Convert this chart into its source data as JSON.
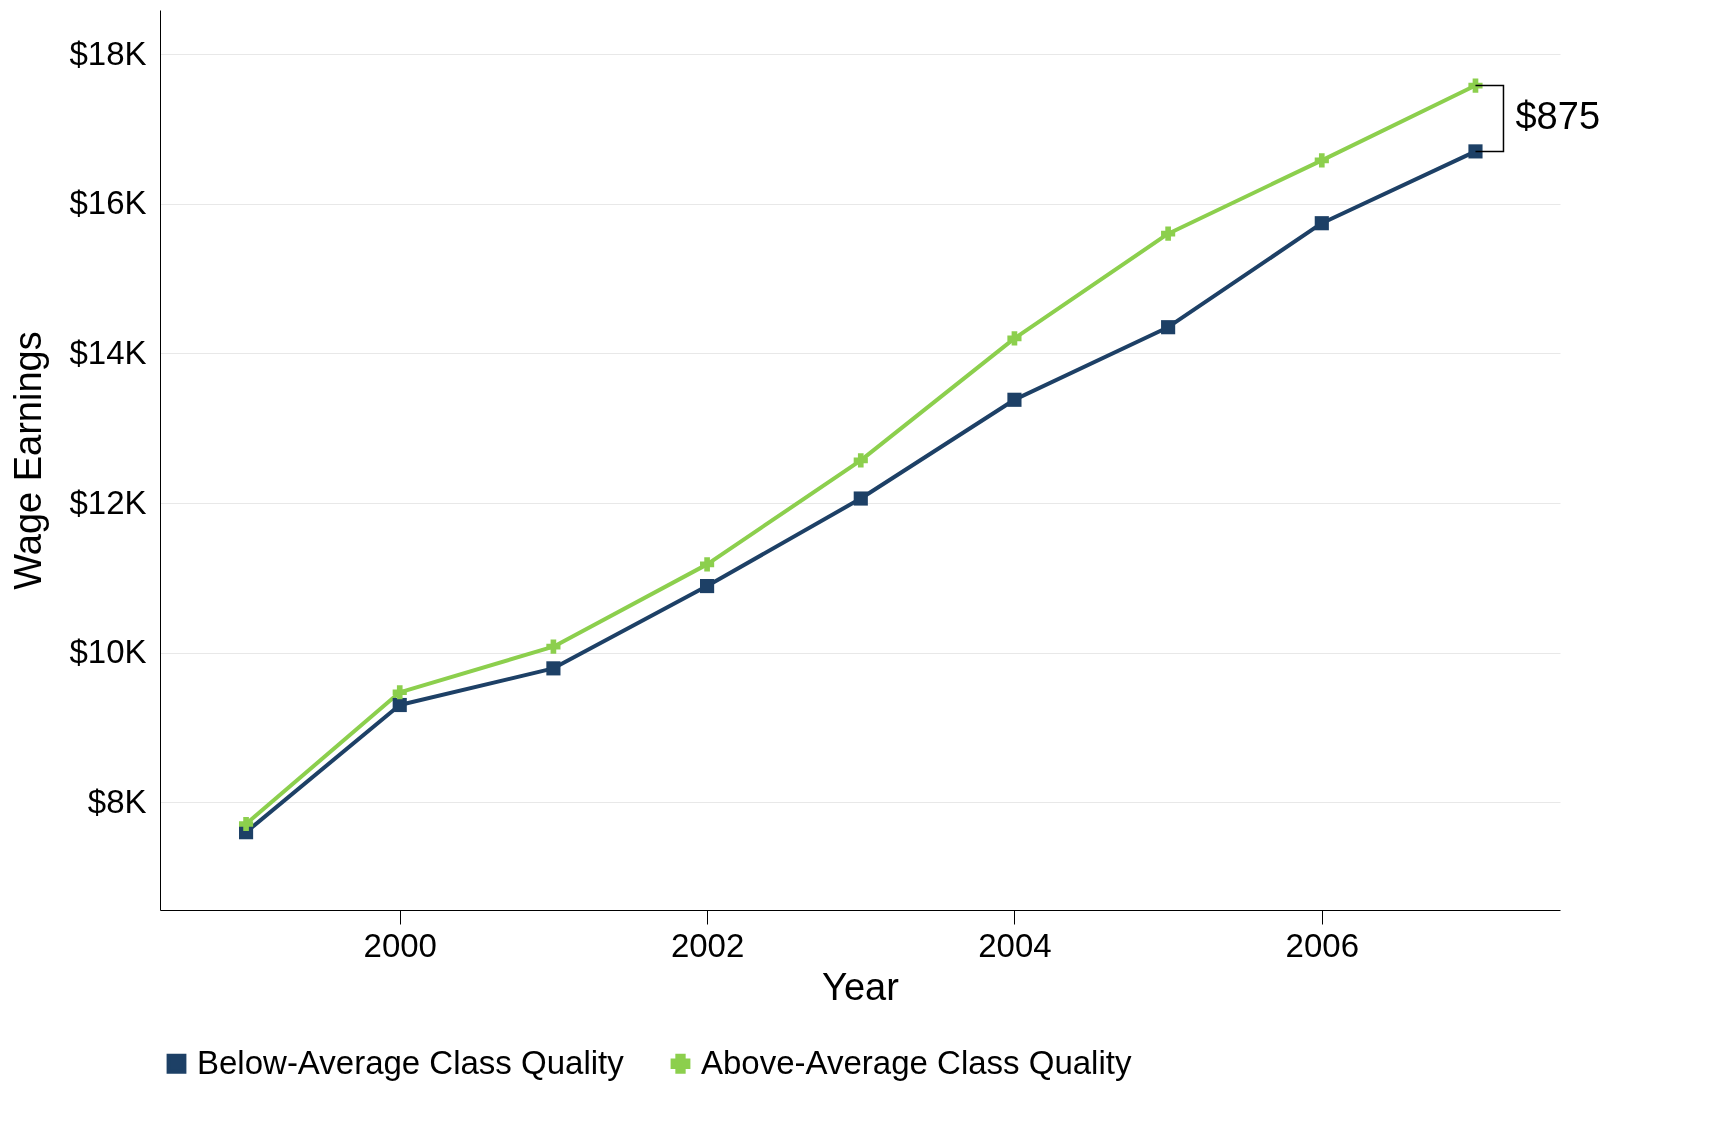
{
  "chart_data": {
    "type": "line",
    "xlabel": "Year",
    "ylabel": "Wage Earnings",
    "x": [
      1999,
      2000,
      2001,
      2002,
      2003,
      2004,
      2005,
      2006,
      2007
    ],
    "series": [
      {
        "name": "Below-Average Class Quality",
        "color": "#1d4066",
        "marker": "square",
        "values": [
          7600,
          9300,
          9790,
          10890,
          12060,
          13380,
          14350,
          15740,
          16700
        ]
      },
      {
        "name": "Above-Average Class Quality",
        "color": "#8ccf4d",
        "marker": "cross",
        "values": [
          7710,
          9470,
          10080,
          11180,
          12570,
          14200,
          15600,
          16580,
          17580
        ]
      }
    ],
    "xlim": [
      1998.44,
      2007.55
    ],
    "xticks": [
      2000,
      2002,
      2004,
      2006
    ],
    "ylim": [
      6560,
      18590
    ],
    "yticks": [
      {
        "value": 8000,
        "label": "$8K"
      },
      {
        "value": 10000,
        "label": "$10K"
      },
      {
        "value": 12000,
        "label": "$12K"
      },
      {
        "value": 14000,
        "label": "$14K"
      },
      {
        "value": 16000,
        "label": "$16K"
      },
      {
        "value": 18000,
        "label": "$18K"
      }
    ],
    "grid": "y",
    "legend": "bottom",
    "line_style": "solid",
    "annotations": [
      "$875"
    ]
  }
}
